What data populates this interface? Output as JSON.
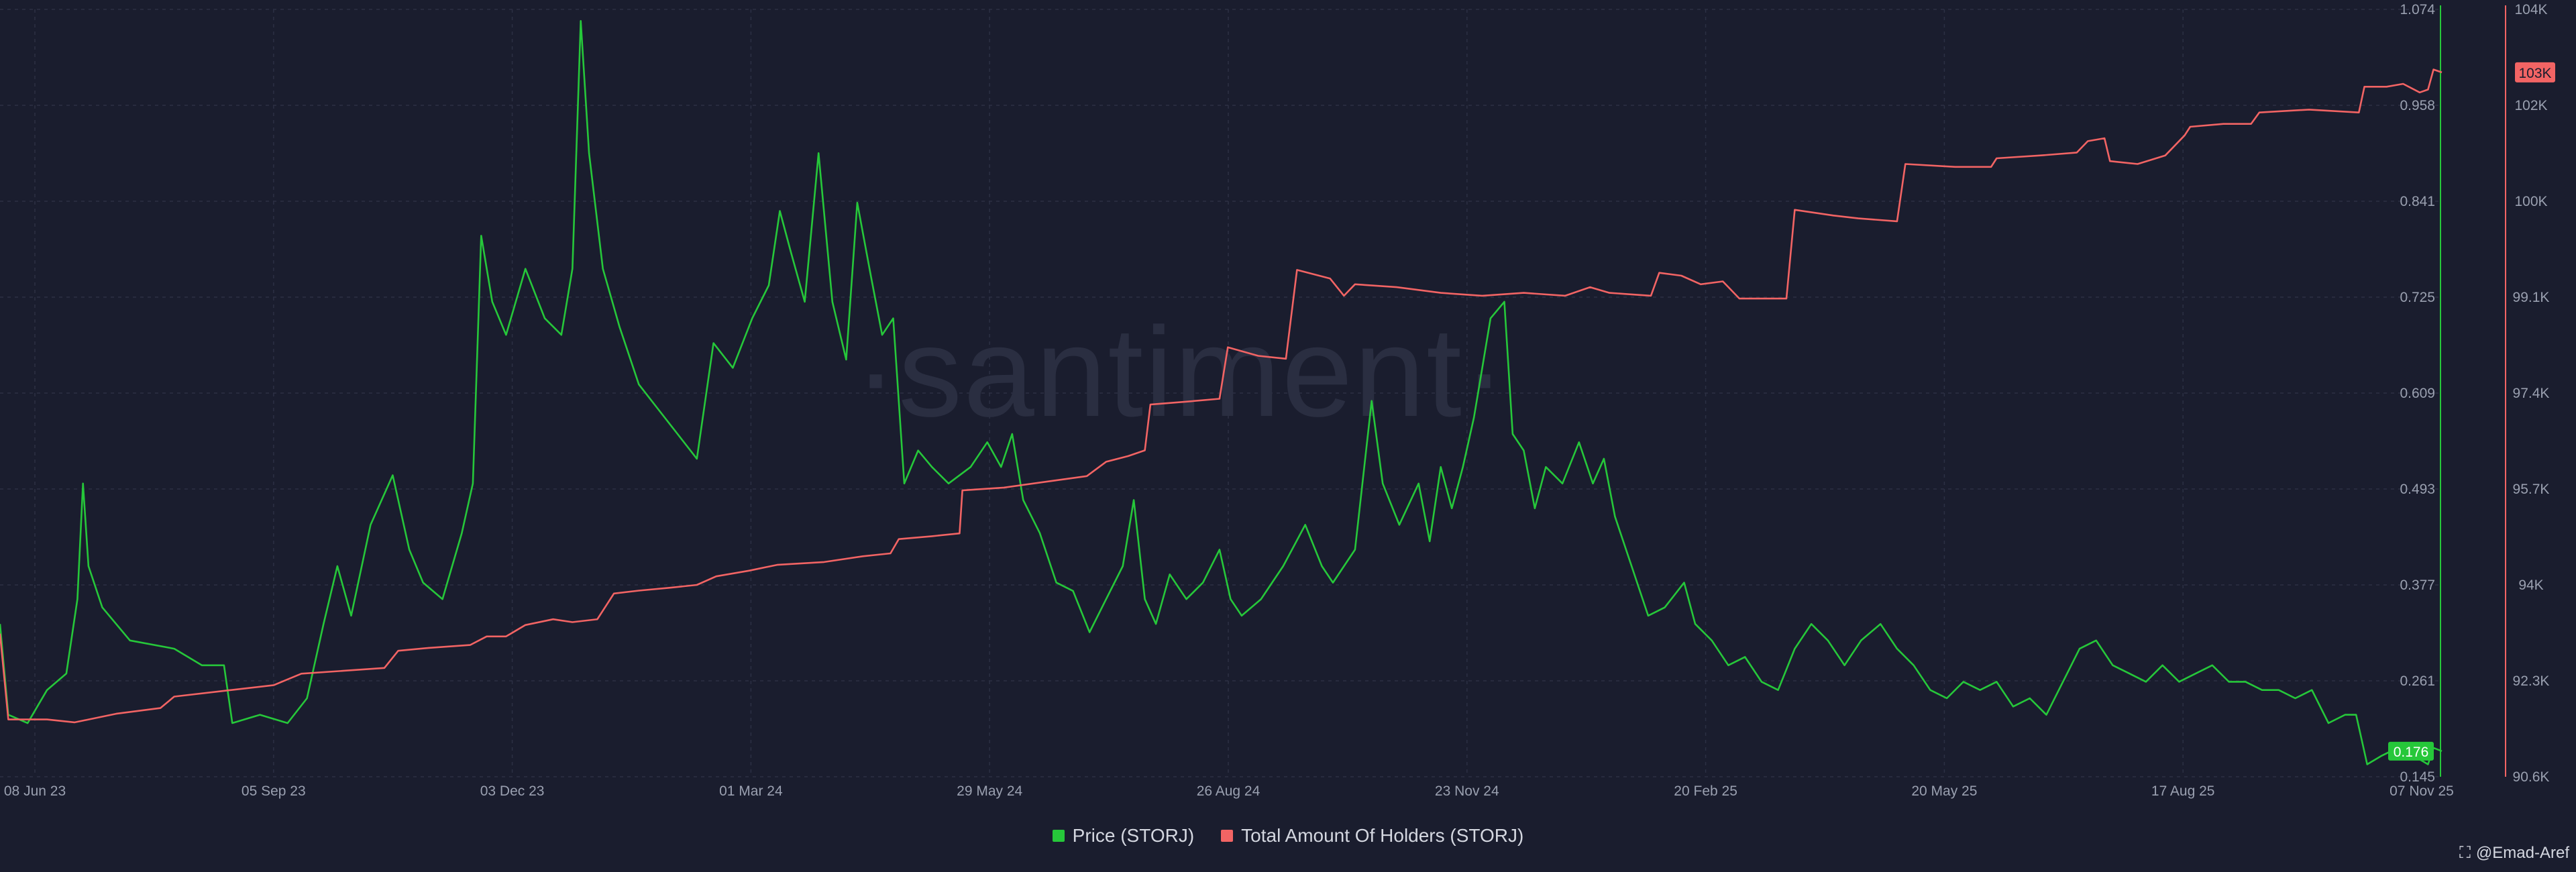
{
  "watermark": "·santiment·",
  "colors": {
    "price": "#26c73a",
    "holders": "#f26464",
    "background": "#1a1d2e"
  },
  "legend": [
    {
      "label": "Price (STORJ)",
      "color": "#26c73a"
    },
    {
      "label": "Total Amount Of Holders (STORJ)",
      "color": "#f26464"
    }
  ],
  "credit": {
    "icon": "network-icon",
    "text": "@Emad-Aref"
  },
  "chart_data": {
    "type": "line",
    "x_tick_labels": [
      "08 Jun 23",
      "05 Sep 23",
      "03 Dec 23",
      "01 Mar 24",
      "29 May 24",
      "26 Aug 24",
      "23 Nov 24",
      "20 Feb 25",
      "20 May 25",
      "17 Aug 25",
      "07 Nov 25"
    ],
    "x_range": [
      "2023-06-08",
      "2025-11-07"
    ],
    "axes": {
      "price": {
        "tick_labels": [
          "1.074",
          "0.958",
          "0.841",
          "0.725",
          "0.609",
          "0.493",
          "0.377",
          "0.261",
          "0.145"
        ],
        "ylim": [
          0.145,
          1.074
        ],
        "current": "0.176"
      },
      "holders": {
        "tick_labels": [
          "104K",
          "102K",
          "100K",
          "99.1K",
          "97.4K",
          "95.7K",
          "94K",
          "92.3K",
          "90.6K"
        ],
        "ylim": [
          90600,
          104000
        ],
        "current": "103K"
      }
    },
    "grid": true,
    "legend_position": "bottom-center",
    "series": [
      {
        "name": "Price (STORJ)",
        "axis": "price",
        "points": [
          [
            "2023-06-08",
            0.33
          ],
          [
            "2023-06-11",
            0.22
          ],
          [
            "2023-06-18",
            0.21
          ],
          [
            "2023-06-25",
            0.25
          ],
          [
            "2023-07-02",
            0.27
          ],
          [
            "2023-07-06",
            0.36
          ],
          [
            "2023-07-08",
            0.5
          ],
          [
            "2023-07-10",
            0.4
          ],
          [
            "2023-07-15",
            0.35
          ],
          [
            "2023-07-25",
            0.31
          ],
          [
            "2023-08-10",
            0.3
          ],
          [
            "2023-08-20",
            0.28
          ],
          [
            "2023-08-28",
            0.28
          ],
          [
            "2023-08-31",
            0.21
          ],
          [
            "2023-09-10",
            0.22
          ],
          [
            "2023-09-20",
            0.21
          ],
          [
            "2023-09-27",
            0.24
          ],
          [
            "2023-10-03",
            0.33
          ],
          [
            "2023-10-08",
            0.4
          ],
          [
            "2023-10-13",
            0.34
          ],
          [
            "2023-10-20",
            0.45
          ],
          [
            "2023-10-28",
            0.51
          ],
          [
            "2023-11-03",
            0.42
          ],
          [
            "2023-11-08",
            0.38
          ],
          [
            "2023-11-15",
            0.36
          ],
          [
            "2023-11-22",
            0.44
          ],
          [
            "2023-11-26",
            0.5
          ],
          [
            "2023-11-29",
            0.8
          ],
          [
            "2023-12-03",
            0.72
          ],
          [
            "2023-12-08",
            0.68
          ],
          [
            "2023-12-15",
            0.76
          ],
          [
            "2023-12-22",
            0.7
          ],
          [
            "2023-12-28",
            0.68
          ],
          [
            "2024-01-01",
            0.76
          ],
          [
            "2024-01-04",
            1.06
          ],
          [
            "2024-01-07",
            0.9
          ],
          [
            "2024-01-12",
            0.76
          ],
          [
            "2024-01-18",
            0.69
          ],
          [
            "2024-01-25",
            0.62
          ],
          [
            "2024-02-01",
            0.59
          ],
          [
            "2024-02-08",
            0.56
          ],
          [
            "2024-02-15",
            0.53
          ],
          [
            "2024-02-21",
            0.67
          ],
          [
            "2024-02-28",
            0.64
          ],
          [
            "2024-03-06",
            0.7
          ],
          [
            "2024-03-12",
            0.74
          ],
          [
            "2024-03-16",
            0.83
          ],
          [
            "2024-03-20",
            0.78
          ],
          [
            "2024-03-25",
            0.72
          ],
          [
            "2024-03-30",
            0.9
          ],
          [
            "2024-04-04",
            0.72
          ],
          [
            "2024-04-09",
            0.65
          ],
          [
            "2024-04-13",
            0.84
          ],
          [
            "2024-04-18",
            0.75
          ],
          [
            "2024-04-22",
            0.68
          ],
          [
            "2024-04-26",
            0.7
          ],
          [
            "2024-04-30",
            0.5
          ],
          [
            "2024-05-05",
            0.54
          ],
          [
            "2024-05-10",
            0.52
          ],
          [
            "2024-05-16",
            0.5
          ],
          [
            "2024-05-24",
            0.52
          ],
          [
            "2024-05-30",
            0.55
          ],
          [
            "2024-06-04",
            0.52
          ],
          [
            "2024-06-08",
            0.56
          ],
          [
            "2024-06-12",
            0.48
          ],
          [
            "2024-06-18",
            0.44
          ],
          [
            "2024-06-24",
            0.38
          ],
          [
            "2024-06-30",
            0.37
          ],
          [
            "2024-07-06",
            0.32
          ],
          [
            "2024-07-12",
            0.36
          ],
          [
            "2024-07-18",
            0.4
          ],
          [
            "2024-07-22",
            0.48
          ],
          [
            "2024-07-26",
            0.36
          ],
          [
            "2024-07-30",
            0.33
          ],
          [
            "2024-08-04",
            0.39
          ],
          [
            "2024-08-10",
            0.36
          ],
          [
            "2024-08-16",
            0.38
          ],
          [
            "2024-08-22",
            0.42
          ],
          [
            "2024-08-26",
            0.36
          ],
          [
            "2024-08-30",
            0.34
          ],
          [
            "2024-09-06",
            0.36
          ],
          [
            "2024-09-14",
            0.4
          ],
          [
            "2024-09-22",
            0.45
          ],
          [
            "2024-09-28",
            0.4
          ],
          [
            "2024-10-02",
            0.38
          ],
          [
            "2024-10-10",
            0.42
          ],
          [
            "2024-10-16",
            0.6
          ],
          [
            "2024-10-20",
            0.5
          ],
          [
            "2024-10-26",
            0.45
          ],
          [
            "2024-11-02",
            0.5
          ],
          [
            "2024-11-06",
            0.43
          ],
          [
            "2024-11-10",
            0.52
          ],
          [
            "2024-11-14",
            0.47
          ],
          [
            "2024-11-18",
            0.52
          ],
          [
            "2024-11-22",
            0.58
          ],
          [
            "2024-11-25",
            0.64
          ],
          [
            "2024-11-28",
            0.7
          ],
          [
            "2024-12-03",
            0.72
          ],
          [
            "2024-12-06",
            0.56
          ],
          [
            "2024-12-10",
            0.54
          ],
          [
            "2024-12-14",
            0.47
          ],
          [
            "2024-12-18",
            0.52
          ],
          [
            "2024-12-24",
            0.5
          ],
          [
            "2024-12-30",
            0.55
          ],
          [
            "2025-01-04",
            0.5
          ],
          [
            "2025-01-08",
            0.53
          ],
          [
            "2025-01-12",
            0.46
          ],
          [
            "2025-01-18",
            0.4
          ],
          [
            "2025-01-24",
            0.34
          ],
          [
            "2025-01-30",
            0.35
          ],
          [
            "2025-02-06",
            0.38
          ],
          [
            "2025-02-10",
            0.33
          ],
          [
            "2025-02-16",
            0.31
          ],
          [
            "2025-02-22",
            0.28
          ],
          [
            "2025-02-28",
            0.29
          ],
          [
            "2025-03-06",
            0.26
          ],
          [
            "2025-03-12",
            0.25
          ],
          [
            "2025-03-18",
            0.3
          ],
          [
            "2025-03-24",
            0.33
          ],
          [
            "2025-03-30",
            0.31
          ],
          [
            "2025-04-05",
            0.28
          ],
          [
            "2025-04-11",
            0.31
          ],
          [
            "2025-04-18",
            0.33
          ],
          [
            "2025-04-24",
            0.3
          ],
          [
            "2025-04-30",
            0.28
          ],
          [
            "2025-05-06",
            0.25
          ],
          [
            "2025-05-12",
            0.24
          ],
          [
            "2025-05-18",
            0.26
          ],
          [
            "2025-05-24",
            0.25
          ],
          [
            "2025-05-30",
            0.26
          ],
          [
            "2025-06-05",
            0.23
          ],
          [
            "2025-06-11",
            0.24
          ],
          [
            "2025-06-17",
            0.22
          ],
          [
            "2025-06-23",
            0.26
          ],
          [
            "2025-06-29",
            0.3
          ],
          [
            "2025-07-05",
            0.31
          ],
          [
            "2025-07-11",
            0.28
          ],
          [
            "2025-07-17",
            0.27
          ],
          [
            "2025-07-23",
            0.26
          ],
          [
            "2025-07-29",
            0.28
          ],
          [
            "2025-08-04",
            0.26
          ],
          [
            "2025-08-10",
            0.27
          ],
          [
            "2025-08-16",
            0.28
          ],
          [
            "2025-08-22",
            0.26
          ],
          [
            "2025-08-28",
            0.26
          ],
          [
            "2025-09-03",
            0.25
          ],
          [
            "2025-09-09",
            0.25
          ],
          [
            "2025-09-15",
            0.24
          ],
          [
            "2025-09-21",
            0.25
          ],
          [
            "2025-09-27",
            0.21
          ],
          [
            "2025-10-03",
            0.22
          ],
          [
            "2025-10-07",
            0.22
          ],
          [
            "2025-10-11",
            0.16
          ],
          [
            "2025-10-16",
            0.17
          ],
          [
            "2025-10-22",
            0.18
          ],
          [
            "2025-10-28",
            0.17
          ],
          [
            "2025-11-02",
            0.16
          ],
          [
            "2025-11-04",
            0.18
          ],
          [
            "2025-11-07",
            0.176
          ]
        ]
      },
      {
        "name": "Total Amount Of Holders (STORJ)",
        "axis": "holders",
        "points": [
          [
            "2023-06-08",
            93.1
          ],
          [
            "2023-06-11",
            91.6
          ],
          [
            "2023-06-25",
            91.6
          ],
          [
            "2023-07-05",
            91.55
          ],
          [
            "2023-07-20",
            91.7
          ],
          [
            "2023-08-05",
            91.8
          ],
          [
            "2023-08-10",
            92.0
          ],
          [
            "2023-08-28",
            92.1
          ],
          [
            "2023-09-15",
            92.2
          ],
          [
            "2023-09-25",
            92.4
          ],
          [
            "2023-10-10",
            92.45
          ],
          [
            "2023-10-25",
            92.5
          ],
          [
            "2023-10-30",
            92.8
          ],
          [
            "2023-11-10",
            92.85
          ],
          [
            "2023-11-25",
            92.9
          ],
          [
            "2023-12-01",
            93.05
          ],
          [
            "2023-12-08",
            93.05
          ],
          [
            "2023-12-15",
            93.25
          ],
          [
            "2023-12-25",
            93.35
          ],
          [
            "2024-01-01",
            93.3
          ],
          [
            "2024-01-10",
            93.35
          ],
          [
            "2024-01-16",
            93.8
          ],
          [
            "2024-01-25",
            93.85
          ],
          [
            "2024-02-05",
            93.9
          ],
          [
            "2024-02-15",
            93.95
          ],
          [
            "2024-02-22",
            94.1
          ],
          [
            "2024-03-05",
            94.2
          ],
          [
            "2024-03-15",
            94.3
          ],
          [
            "2024-04-01",
            94.35
          ],
          [
            "2024-04-15",
            94.45
          ],
          [
            "2024-04-25",
            94.5
          ],
          [
            "2024-04-28",
            94.75
          ],
          [
            "2024-05-10",
            94.8
          ],
          [
            "2024-05-20",
            94.85
          ],
          [
            "2024-05-21",
            95.6
          ],
          [
            "2024-06-05",
            95.65
          ],
          [
            "2024-06-20",
            95.75
          ],
          [
            "2024-07-05",
            95.85
          ],
          [
            "2024-07-12",
            96.1
          ],
          [
            "2024-07-20",
            96.2
          ],
          [
            "2024-07-26",
            96.3
          ],
          [
            "2024-07-28",
            97.1
          ],
          [
            "2024-08-10",
            97.15
          ],
          [
            "2024-08-22",
            97.2
          ],
          [
            "2024-08-25",
            98.1
          ],
          [
            "2024-09-05",
            97.95
          ],
          [
            "2024-09-15",
            97.9
          ],
          [
            "2024-09-19",
            99.45
          ],
          [
            "2024-10-01",
            99.3
          ],
          [
            "2024-10-06",
            99.0
          ],
          [
            "2024-10-10",
            99.2
          ],
          [
            "2024-10-25",
            99.15
          ],
          [
            "2024-11-10",
            99.05
          ],
          [
            "2024-11-25",
            99.0
          ],
          [
            "2024-12-10",
            99.05
          ],
          [
            "2024-12-25",
            99.0
          ],
          [
            "2025-01-03",
            99.15
          ],
          [
            "2025-01-10",
            99.05
          ],
          [
            "2025-01-25",
            99.0
          ],
          [
            "2025-01-28",
            99.4
          ],
          [
            "2025-02-05",
            99.35
          ],
          [
            "2025-02-12",
            99.2
          ],
          [
            "2025-02-20",
            99.25
          ],
          [
            "2025-02-26",
            98.95
          ],
          [
            "2025-03-15",
            98.95
          ],
          [
            "2025-03-18",
            100.5
          ],
          [
            "2025-04-01",
            100.4
          ],
          [
            "2025-04-10",
            100.35
          ],
          [
            "2025-04-24",
            100.3
          ],
          [
            "2025-04-27",
            101.3
          ],
          [
            "2025-05-15",
            101.25
          ],
          [
            "2025-05-28",
            101.25
          ],
          [
            "2025-05-30",
            101.4
          ],
          [
            "2025-06-15",
            101.45
          ],
          [
            "2025-06-28",
            101.5
          ],
          [
            "2025-07-02",
            101.7
          ],
          [
            "2025-07-08",
            101.75
          ],
          [
            "2025-07-10",
            101.35
          ],
          [
            "2025-07-20",
            101.3
          ],
          [
            "2025-07-30",
            101.45
          ],
          [
            "2025-08-06",
            101.8
          ],
          [
            "2025-08-08",
            101.95
          ],
          [
            "2025-08-20",
            102.0
          ],
          [
            "2025-08-30",
            102.0
          ],
          [
            "2025-09-02",
            102.2
          ],
          [
            "2025-09-20",
            102.25
          ],
          [
            "2025-10-08",
            102.2
          ],
          [
            "2025-10-10",
            102.65
          ],
          [
            "2025-10-18",
            102.65
          ],
          [
            "2025-10-24",
            102.7
          ],
          [
            "2025-10-30",
            102.55
          ],
          [
            "2025-11-02",
            102.6
          ],
          [
            "2025-11-04",
            102.95
          ],
          [
            "2025-11-07",
            102.9
          ]
        ]
      }
    ]
  }
}
